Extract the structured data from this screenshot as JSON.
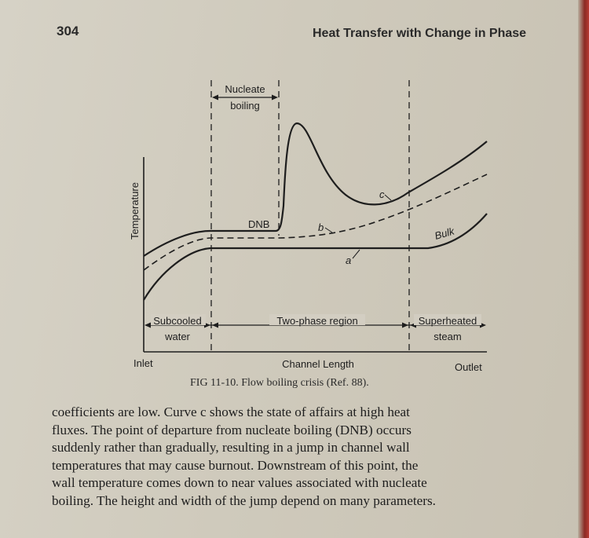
{
  "header": {
    "page_number": "304",
    "running_title": "Heat Transfer with Change in Phase"
  },
  "figure": {
    "y_axis_label": "Temperature",
    "x_axis_label": "Channel Length",
    "inlet_label": "Inlet",
    "outlet_label": "Outlet",
    "nucleate_label_line1": "Nucleate",
    "nucleate_label_line2": "boiling",
    "subcooled_line1": "Subcooled",
    "subcooled_line2": "water",
    "two_phase_label": "Two-phase region",
    "superheated_line1": "Superheated",
    "superheated_line2": "steam",
    "dnb_label": "DNB",
    "curve_a_label": "a",
    "curve_b_label": "b",
    "curve_c_label": "c",
    "bulk_label": "Bulk",
    "caption": "FIG 11-10.  Flow boiling crisis (Ref. 88)."
  },
  "body_text": {
    "line1": "coefficients are low.  Curve c shows the state of affairs at high heat",
    "line2": "fluxes.  The point of departure from nucleate boiling (DNB) occurs",
    "line3": "suddenly rather than gradually, resulting in a jump in channel wall",
    "line4": "temperatures that may cause burnout.  Downstream of this point, the",
    "line5": "wall temperature comes down to near values associated with nucleate",
    "line6": "boiling.  The height and width of the jump depend on many parameters."
  },
  "colors": {
    "paper": "#cfcabc",
    "ink": "#1e1e1e"
  }
}
